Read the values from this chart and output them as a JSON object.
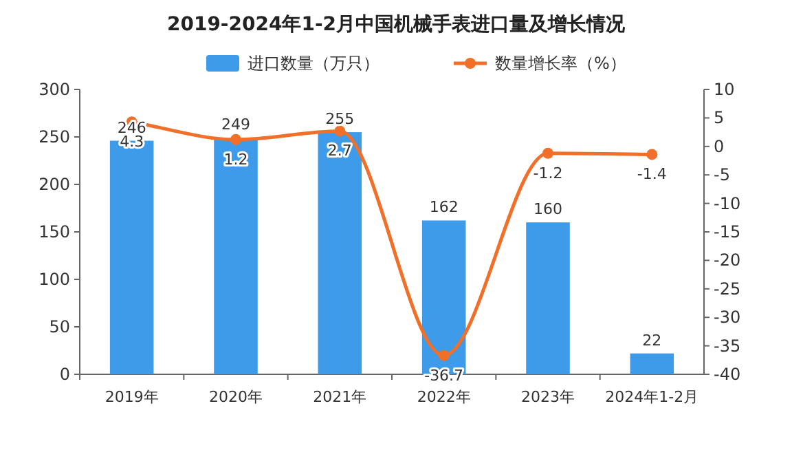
{
  "chart_data": {
    "type": "bar",
    "title": "2019-2024年1-2月中国机械手表进口量及增长情况",
    "categories": [
      "2019年",
      "2020年",
      "2021年",
      "2022年",
      "2023年",
      "2024年1-2月"
    ],
    "series": [
      {
        "name": "进口数量（万只）",
        "color": "#3d9be9",
        "values": [
          246,
          249,
          255,
          162,
          160,
          22
        ]
      },
      {
        "name": "数量增长率（%）",
        "type": "line",
        "axis": "y2",
        "color": "#f26f2a",
        "marker": "circle",
        "values": [
          4.3,
          1.2,
          2.7,
          -36.7,
          -1.2,
          -1.4
        ]
      }
    ],
    "ylim": [
      0,
      300
    ],
    "yticks": [
      0,
      50,
      100,
      150,
      200,
      250,
      300
    ],
    "y2lim": [
      -40,
      10
    ],
    "y2ticks": [
      -40,
      -35,
      -30,
      -25,
      -20,
      -15,
      -10,
      -5,
      0,
      5,
      10
    ],
    "data_labels": true,
    "legend": "top",
    "grid": false
  }
}
